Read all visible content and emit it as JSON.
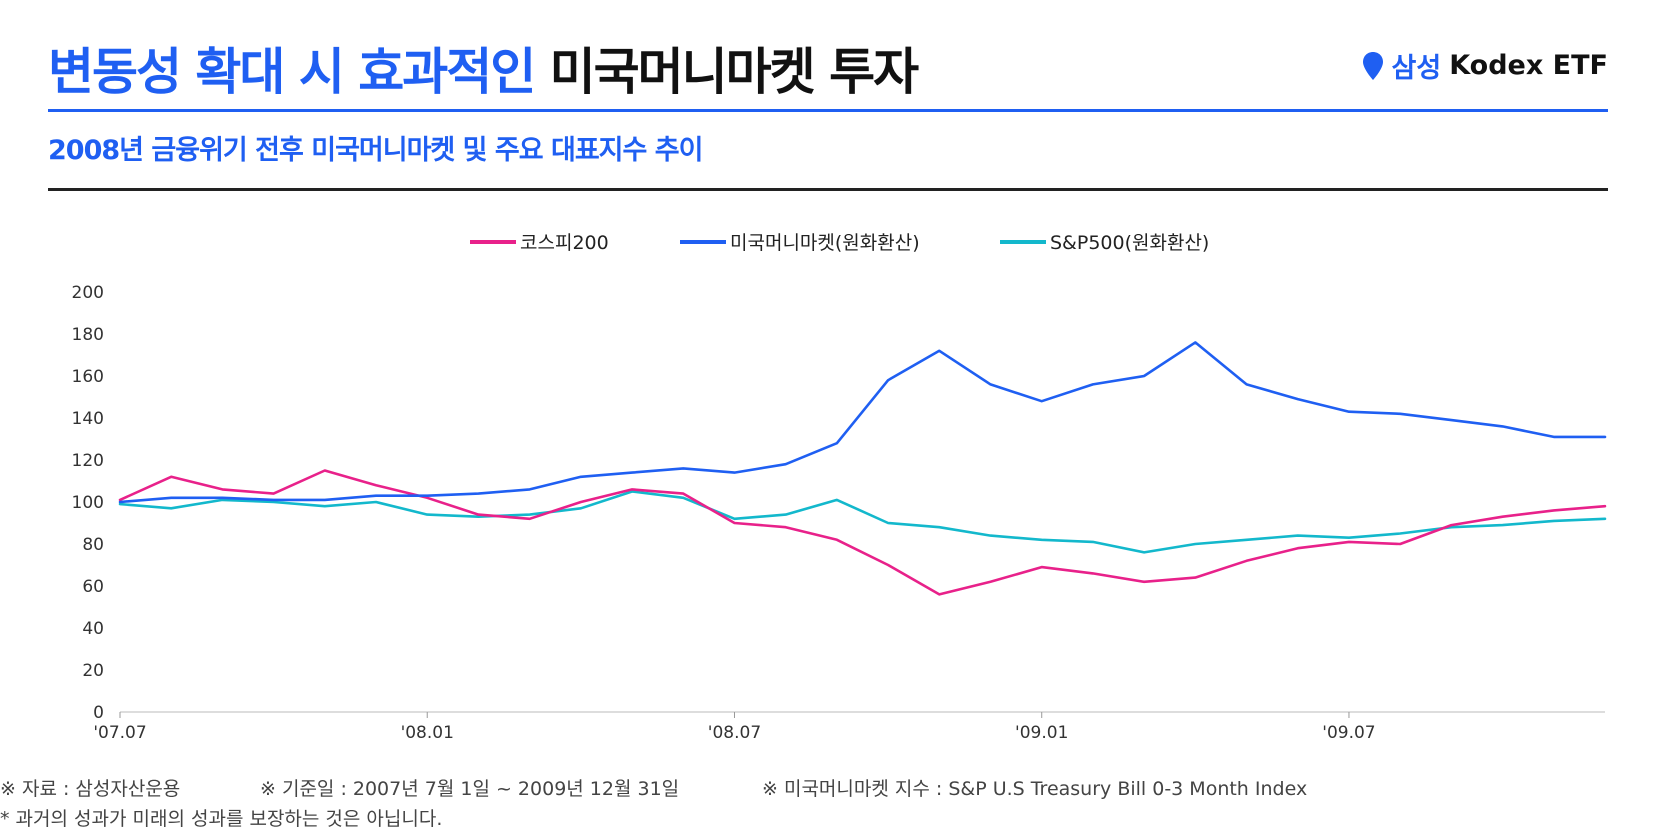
{
  "header": {
    "title_highlight": "변동성 확대 시 효과적인",
    "title_rest": "미국머니마켓 투자",
    "brand_prefix": "삼성",
    "brand_name": "Kodex ETF",
    "brand_icon": "location-pin-icon"
  },
  "subtitle": "2008년 금융위기 전후 미국머니마켓 및 주요 대표지수 추이",
  "footer": {
    "source": "※ 자료 : 삼성자산운용",
    "period": "※ 기준일 : 2007년 7월 1일 ~ 2009년 12월 31일",
    "index_note": "※ 미국머니마켓 지수 : S&P U.S Treasury Bill 0-3 Month Index",
    "disclaimer": "* 과거의 성과가 미래의 성과를 보장하는 것은 아닙니다."
  },
  "colors": {
    "accent": "#1f5ff2",
    "kospi": "#e8218a",
    "mm": "#1f5ff2",
    "sp": "#13b8cc"
  },
  "chart_data": {
    "type": "line",
    "title": "",
    "xlabel": "",
    "ylabel": "",
    "ylim": [
      0,
      200
    ],
    "yticks": [
      0,
      20,
      40,
      60,
      80,
      100,
      120,
      140,
      160,
      180,
      200
    ],
    "xticks": [
      "'07.07",
      "'08.01",
      "'08.07",
      "'09.01",
      "'09.07"
    ],
    "grid": false,
    "legend_position": "top-center",
    "x": [
      "2007-07",
      "2007-08",
      "2007-09",
      "2007-10",
      "2007-11",
      "2007-12",
      "2008-01",
      "2008-02",
      "2008-03",
      "2008-04",
      "2008-05",
      "2008-06",
      "2008-07",
      "2008-08",
      "2008-09",
      "2008-10",
      "2008-11",
      "2008-12",
      "2009-01",
      "2009-02",
      "2009-03",
      "2009-04",
      "2009-05",
      "2009-06",
      "2009-07",
      "2009-08",
      "2009-09",
      "2009-10",
      "2009-11",
      "2009-12"
    ],
    "series": [
      {
        "name": "코스피200",
        "color": "#e8218a",
        "values": [
          101,
          112,
          106,
          104,
          115,
          108,
          102,
          94,
          92,
          100,
          106,
          104,
          90,
          88,
          82,
          70,
          56,
          62,
          69,
          66,
          62,
          64,
          72,
          78,
          81,
          80,
          89,
          93,
          96,
          98
        ]
      },
      {
        "name": "미국머니마켓(원화환산)",
        "color": "#1f5ff2",
        "values": [
          100,
          102,
          102,
          101,
          101,
          103,
          103,
          104,
          106,
          112,
          114,
          116,
          114,
          118,
          128,
          158,
          172,
          156,
          148,
          156,
          160,
          176,
          156,
          149,
          143,
          142,
          139,
          136,
          131,
          131
        ]
      },
      {
        "name": "S&P500(원화환산)",
        "color": "#13b8cc",
        "values": [
          99,
          97,
          101,
          100,
          98,
          100,
          94,
          93,
          94,
          97,
          105,
          102,
          92,
          94,
          101,
          90,
          88,
          84,
          82,
          81,
          76,
          80,
          82,
          84,
          83,
          85,
          88,
          89,
          91,
          92
        ]
      }
    ]
  }
}
